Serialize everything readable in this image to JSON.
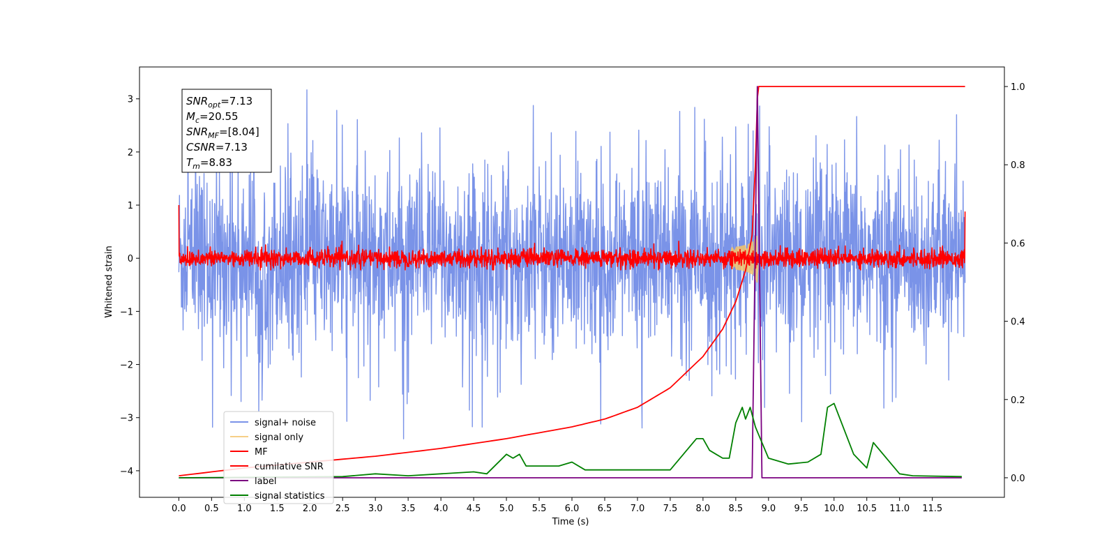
{
  "chart_data": {
    "type": "line",
    "xlabel": "Time (s)",
    "ylabel": "Whitened strain",
    "xlim": [
      -0.6,
      12.6
    ],
    "ylim": [
      -4.5,
      3.6
    ],
    "y2lim": [
      -0.05,
      1.05
    ],
    "x_ticks": [
      0.0,
      0.5,
      1.0,
      1.5,
      2.0,
      2.5,
      3.0,
      3.5,
      4.0,
      4.5,
      5.0,
      5.5,
      6.0,
      6.5,
      7.0,
      7.5,
      8.0,
      8.5,
      9.0,
      9.5,
      10.0,
      10.5,
      11.0,
      11.5
    ],
    "x_tick_labels": [
      "0.0",
      "0.5",
      "1.0",
      "1.5",
      "2.0",
      "2.5",
      "3.0",
      "3.5",
      "4.0",
      "4.5",
      "5.0",
      "5.5",
      "6.0",
      "6.5",
      "7.0",
      "7.5",
      "8.0",
      "8.5",
      "9.0",
      "9.5",
      "10.0",
      "10.5",
      "11.0",
      "11.5"
    ],
    "y_ticks": [
      -4,
      -3,
      -2,
      -1,
      0,
      1,
      2,
      3
    ],
    "y_tick_labels": [
      "−4",
      "−3",
      "−2",
      "−1",
      "0",
      "1",
      "2",
      "3"
    ],
    "y2_ticks": [
      0.0,
      0.2,
      0.4,
      0.6,
      0.8,
      1.0
    ],
    "y2_tick_labels": [
      "0.0",
      "0.2",
      "0.4",
      "0.6",
      "0.8",
      "1.0"
    ],
    "grid": false,
    "legend_position": "lower-left",
    "annotation_box": [
      {
        "base": "SNR",
        "sub": "opt",
        "value": "=7.13"
      },
      {
        "base": "M",
        "sub": "c",
        "value": "=20.55"
      },
      {
        "base": "SNR",
        "sub": "MF",
        "value": "=[8.04]"
      },
      {
        "base": "CSNR",
        "sub": "",
        "value": "=7.13"
      },
      {
        "base": "T",
        "sub": "m",
        "value": "=8.83"
      }
    ],
    "series": [
      {
        "name": "signal+ noise",
        "color": "#7a93e8",
        "axis": "left",
        "kind": "noise",
        "amplitude": 1.0,
        "x_range": [
          0.0,
          12.0
        ]
      },
      {
        "name": "signal only",
        "color": "#f5c46a",
        "axis": "left",
        "kind": "chirp",
        "merger_time": 8.83,
        "peak": 0.35
      },
      {
        "name": "MF",
        "color": "#ff0000",
        "axis": "left",
        "kind": "noise",
        "amplitude": 0.1,
        "x_range": [
          0.0,
          12.0
        ]
      },
      {
        "name": "cumilative SNR",
        "color": "#ff0000",
        "axis": "right",
        "x": [
          0.0,
          1.0,
          2.0,
          3.0,
          4.0,
          5.0,
          6.0,
          6.5,
          7.0,
          7.5,
          8.0,
          8.3,
          8.5,
          8.65,
          8.75,
          8.8,
          8.83,
          8.85,
          12.0
        ],
        "y": [
          0.005,
          0.025,
          0.04,
          0.055,
          0.075,
          0.1,
          0.13,
          0.15,
          0.18,
          0.23,
          0.31,
          0.38,
          0.45,
          0.53,
          0.62,
          0.8,
          0.97,
          1.0,
          1.0
        ]
      },
      {
        "name": "label",
        "color": "#7b0080",
        "axis": "right",
        "x": [
          0.0,
          8.75,
          8.83,
          8.9,
          11.95
        ],
        "y": [
          0.0,
          0.0,
          1.0,
          0.0,
          0.0
        ]
      },
      {
        "name": "signal statistics",
        "color": "#008000",
        "axis": "right",
        "x": [
          0.0,
          2.5,
          3.0,
          3.5,
          4.0,
          4.5,
          4.7,
          5.0,
          5.1,
          5.2,
          5.3,
          5.5,
          5.8,
          6.0,
          6.2,
          6.5,
          7.0,
          7.5,
          7.7,
          7.9,
          8.0,
          8.1,
          8.2,
          8.3,
          8.4,
          8.5,
          8.6,
          8.65,
          8.72,
          8.8,
          8.85,
          9.0,
          9.3,
          9.6,
          9.8,
          9.9,
          10.0,
          10.3,
          10.5,
          10.6,
          10.8,
          11.0,
          11.2,
          11.95
        ],
        "y": [
          0.0,
          0.003,
          0.01,
          0.005,
          0.01,
          0.015,
          0.01,
          0.06,
          0.05,
          0.06,
          0.03,
          0.03,
          0.03,
          0.04,
          0.02,
          0.02,
          0.02,
          0.02,
          0.06,
          0.1,
          0.1,
          0.07,
          0.06,
          0.05,
          0.05,
          0.14,
          0.18,
          0.15,
          0.18,
          0.13,
          0.11,
          0.05,
          0.035,
          0.04,
          0.06,
          0.18,
          0.19,
          0.06,
          0.025,
          0.09,
          0.05,
          0.01,
          0.005,
          0.003
        ]
      }
    ]
  }
}
